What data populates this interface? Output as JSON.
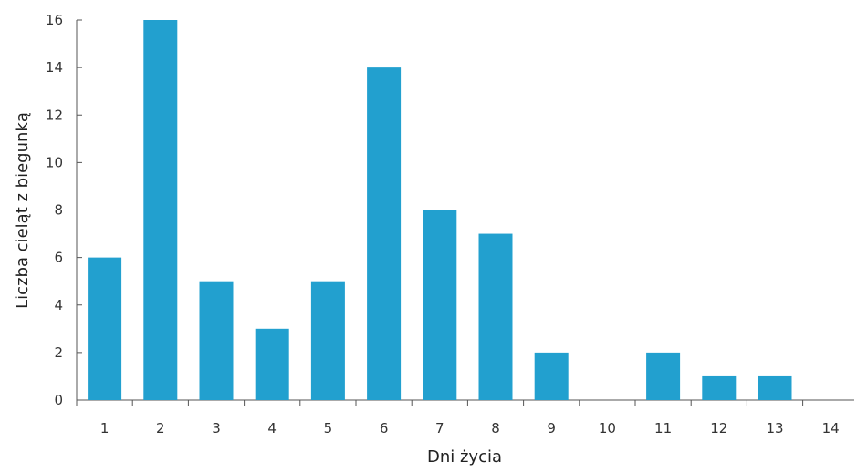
{
  "chart_data": {
    "type": "bar",
    "categories": [
      "1",
      "2",
      "3",
      "4",
      "5",
      "6",
      "7",
      "8",
      "9",
      "10",
      "11",
      "12",
      "13",
      "14"
    ],
    "values": [
      6,
      16,
      5,
      3,
      5,
      14,
      8,
      7,
      2,
      0,
      2,
      1,
      1,
      0
    ],
    "xlabel": "Dni życia",
    "ylabel": "Liczba cieląt z biegunką",
    "ylim": [
      0,
      16
    ],
    "yticks": [
      "0",
      "2",
      "4",
      "6",
      "8",
      "10",
      "12",
      "14",
      "16"
    ],
    "grid": false,
    "bar_color": "#22a0cf"
  }
}
